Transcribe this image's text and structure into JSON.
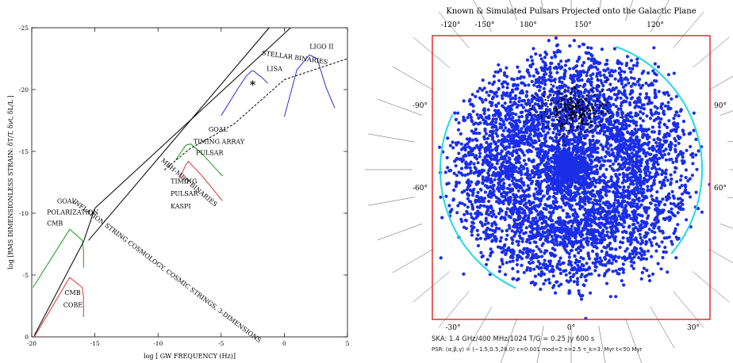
{
  "chart_data": [
    {
      "type": "line",
      "xlabel": "log [ GW FREQUENCY (Hz)]",
      "ylabel": "log [RMS DIMENSIONLESS STRAIN: δT/T, δνt, δL/L ]",
      "xlim": [
        -20,
        5
      ],
      "ylim": [
        -25,
        0
      ],
      "x_ticks": [
        -20,
        -15,
        -10,
        -5,
        0,
        5
      ],
      "y_ticks": [
        0,
        -5,
        -10,
        -15,
        -20,
        -25
      ],
      "annotations": [
        {
          "text": "COBE",
          "color": "#e03030",
          "x": -17.5,
          "y": -2.4
        },
        {
          "text": "CMB",
          "color": "#e03030",
          "x": -17.4,
          "y": -3.4
        },
        {
          "text": "CMB",
          "color": "#1a9a1a",
          "x": -18.8,
          "y": -9.0
        },
        {
          "text": "POLARIZATION",
          "color": "#1a9a1a",
          "x": -18.8,
          "y": -9.9
        },
        {
          "text": "GOAL",
          "color": "#1a9a1a",
          "x": -18.0,
          "y": -10.8
        },
        {
          "text": "KASPI",
          "color": "#e03030",
          "x": -9.0,
          "y": -10.4
        },
        {
          "text": "PULSAR",
          "color": "#e03030",
          "x": -9.0,
          "y": -11.4
        },
        {
          "text": "TIMING",
          "color": "#e03030",
          "x": -9.0,
          "y": -12.4
        },
        {
          "text": "PULSAR",
          "color": "#1a9a1a",
          "x": -7.0,
          "y": -14.7
        },
        {
          "text": "TIMING ARRAY",
          "color": "#1a9a1a",
          "x": -7.2,
          "y": -15.6
        },
        {
          "text": "GOAL",
          "color": "#1a9a1a",
          "x": -6.0,
          "y": -16.6
        },
        {
          "text": "LISA",
          "color": "#3030d0",
          "x": -1.4,
          "y": -21.5
        },
        {
          "text": "LIGO II",
          "color": "#3030d0",
          "x": 2.0,
          "y": -23.3
        },
        {
          "text": "STELLAR BINARIES",
          "color": "#000000",
          "x": -1.8,
          "y": -22.8,
          "angle": 8
        },
        {
          "text": "INFLATION STRING COSMOLOGY, COSMIC STRINGS, 3-DIMENSIONS",
          "color": "#000000",
          "x": -16.8,
          "y": -10.9,
          "angle": 37
        },
        {
          "text": "MBH-MBH BINARIES",
          "color": "#000000",
          "x": -9.8,
          "y": -14.2,
          "angle": 40
        }
      ],
      "series": [
        {
          "color": "#e03030",
          "x": [
            -19.8,
            -17.0,
            -16.0,
            -15.9,
            -15.9
          ],
          "y": [
            0,
            -4.8,
            -4.0,
            -3.2,
            -1.6
          ]
        },
        {
          "color": "#1a9a1a",
          "x": [
            -19.9,
            -17.0,
            -16.0,
            -15.9,
            -15.9
          ],
          "y": [
            -4.0,
            -8.7,
            -7.8,
            -7.0,
            -5.6
          ]
        },
        {
          "color": "#000000",
          "x": [
            -19.8,
            -15.9,
            -15.0,
            0.5
          ],
          "y": [
            -0.1,
            -7.7,
            -10.4,
            -25.0
          ]
        },
        {
          "color": "#000000",
          "x": [
            -15.5,
            -1.2
          ],
          "y": [
            -7.8,
            -25.0
          ]
        },
        {
          "color": "#e03030",
          "x": [
            -8.3,
            -7.8,
            -7.6,
            -6.5,
            -4.9
          ],
          "y": [
            -12.8,
            -13.9,
            -14.2,
            -13.0,
            -11.0
          ]
        },
        {
          "color": "#1a9a1a",
          "x": [
            -8.6,
            -7.8,
            -7.4,
            -6.5,
            -4.9
          ],
          "y": [
            -14.3,
            -15.5,
            -15.6,
            -14.8,
            -13.0
          ]
        },
        {
          "color": "#000000",
          "dash": true,
          "x": [
            -9.5,
            -7.5,
            -4.0,
            0.0,
            5.0
          ],
          "y": [
            -13.5,
            -15.2,
            -17.2,
            -20.8,
            -22.5
          ]
        },
        {
          "color": "#3030d0",
          "x": [
            -5.0,
            -3.6,
            -3.0,
            -2.6,
            -2.4,
            -2.2,
            -1.8,
            -1.3
          ],
          "y": [
            -17.9,
            -20.2,
            -21.1,
            -21.5,
            -21.5,
            -21.3,
            -21.0,
            -20.5
          ]
        },
        {
          "color": "#3030d0",
          "x": [
            0.0,
            1.0,
            2.0,
            2.6,
            3.3,
            4.0
          ],
          "y": [
            -17.8,
            -21.6,
            -22.8,
            -22.5,
            -20.2,
            -18.5
          ]
        }
      ],
      "markers": [
        {
          "symbol": "*",
          "x": -2.5,
          "y": -20.4
        }
      ]
    },
    {
      "type": "scatter",
      "title": "Known & Simulated Pulsars Projected onto the Galactic Plane",
      "top_tick_labels": [
        "-120°",
        "-150°",
        "180°",
        "150°",
        "120°"
      ],
      "bottom_tick_labels": [
        "-30°",
        "0°",
        "30°"
      ],
      "left_tick_labels": [
        "-90°",
        "-60°"
      ],
      "right_tick_labels": [
        "90°",
        "60°"
      ],
      "footer_line1": "SKA: 1.4 GHz/400 MHz/1024   T/G = 0.25 Jy   600 s",
      "footer_line2": "PSR: (α,β,γ) = (−1.5,0.5,28.0)   ε=0.001   mod=2   n=2.5   τ_k=3. Myr   t<50 Myr",
      "point_color": "#1a2ee8",
      "known_color": "#000000",
      "frame_color": "#e02020",
      "arc_color": "#20d8e8",
      "point_count": 5200,
      "seed": 7
    }
  ]
}
